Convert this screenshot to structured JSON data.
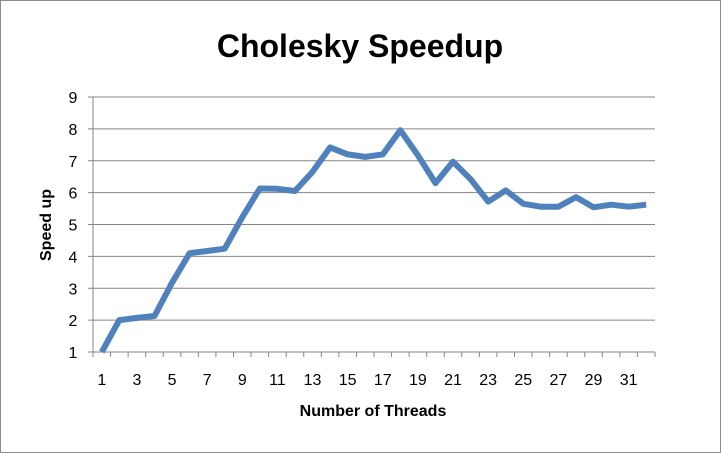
{
  "chart_data": {
    "type": "line",
    "title": "Cholesky Speedup",
    "xlabel": "Number of Threads",
    "ylabel": "Speed up",
    "x": [
      1,
      2,
      3,
      4,
      5,
      6,
      7,
      8,
      9,
      10,
      11,
      12,
      13,
      14,
      15,
      16,
      17,
      18,
      19,
      20,
      21,
      22,
      23,
      24,
      25,
      26,
      27,
      28,
      29,
      30,
      31,
      32
    ],
    "x_tick_labels": [
      "1",
      "3",
      "5",
      "7",
      "9",
      "11",
      "13",
      "15",
      "17",
      "19",
      "21",
      "23",
      "25",
      "27",
      "29",
      "31"
    ],
    "y_tick_labels": [
      "1",
      "2",
      "3",
      "4",
      "5",
      "6",
      "7",
      "8",
      "9"
    ],
    "ylim": [
      1,
      9
    ],
    "xlim": [
      1,
      32
    ],
    "grid": "horizontal",
    "legend": "none",
    "series": [
      {
        "color": "#4f81bd",
        "values": [
          1.0,
          2.0,
          2.07,
          2.13,
          3.17,
          4.1,
          4.17,
          4.24,
          5.23,
          6.13,
          6.12,
          6.05,
          6.65,
          7.42,
          7.2,
          7.12,
          7.2,
          7.96,
          7.17,
          6.3,
          6.97,
          6.42,
          5.72,
          6.07,
          5.65,
          5.56,
          5.56,
          5.86,
          5.54,
          5.62,
          5.56,
          5.62
        ]
      }
    ],
    "colors": {
      "line": "#4f81bd",
      "grid": "#868686",
      "axis": "#868686",
      "frame": "#8c8c8c"
    }
  }
}
